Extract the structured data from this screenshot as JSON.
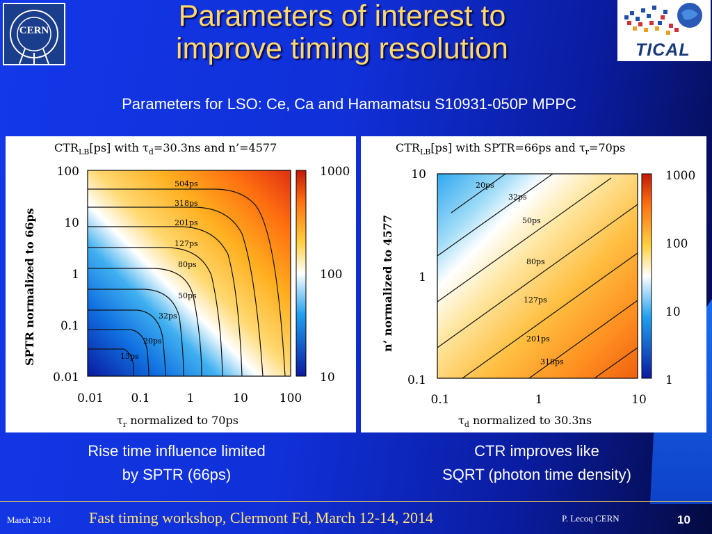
{
  "title": {
    "line1": "Parameters of interest to",
    "line2": "improve timing resolution"
  },
  "logos": {
    "cern": "CERN",
    "tical": "TICAL"
  },
  "subtitle": "Parameters for LSO: Ce, Ca and Hamamatsu S10931-050P MPPC",
  "left_plot": {
    "title_main": "CTR",
    "title_sub": "LB",
    "title_rest": "[ps] with τ",
    "title_tau_sub": "d",
    "title_end": "=30.3ns and n’=4577",
    "y_label": "SPTR normalized to 66ps",
    "x_label_tau": "τ",
    "x_label_sub": "r",
    "x_label_rest": " normalized to 70ps",
    "y_ticks": [
      "100",
      "10",
      "1",
      "0.1",
      "0.01"
    ],
    "x_ticks": [
      "0.01",
      "0.1",
      "1",
      "10",
      "100"
    ],
    "colorbar_ticks": [
      "1000",
      "100",
      "10"
    ],
    "contours": [
      "504ps",
      "318ps",
      "201ps",
      "127ps",
      "80ps",
      "50ps",
      "32ps",
      "20ps",
      "13ps"
    ]
  },
  "right_plot": {
    "title_main": "CTR",
    "title_sub": "LB",
    "title_rest": "[ps] with SPTR=66ps and τ",
    "title_tau_sub": "r",
    "title_end": "=70ps",
    "y_label": "n’ normalized to 4577",
    "x_label_tau": "τ",
    "x_label_sub": "d",
    "x_label_rest": " normalized to 30.3ns",
    "y_ticks": [
      "10",
      "1",
      "0.1"
    ],
    "x_ticks": [
      "0.1",
      "1",
      "10"
    ],
    "colorbar_ticks": [
      "1000",
      "100",
      "10",
      "1"
    ],
    "contours": [
      "20ps",
      "32ps",
      "50ps",
      "80ps",
      "127ps",
      "201ps",
      "318ps"
    ]
  },
  "captions": {
    "left_line1": "Rise time influence limited",
    "left_line2": "by SPTR (66ps)",
    "right_line1": "CTR improves like",
    "right_line2": "SQRT (photon time density)"
  },
  "footer": {
    "date": "March 2014",
    "event": "Fast timing workshop, Clermont Fd, March 12-14, 2014",
    "author": "P. Lecoq  CERN",
    "page": "10"
  },
  "colors": {
    "title": "#ffd86a",
    "footer_event": "#ffe27a"
  }
}
